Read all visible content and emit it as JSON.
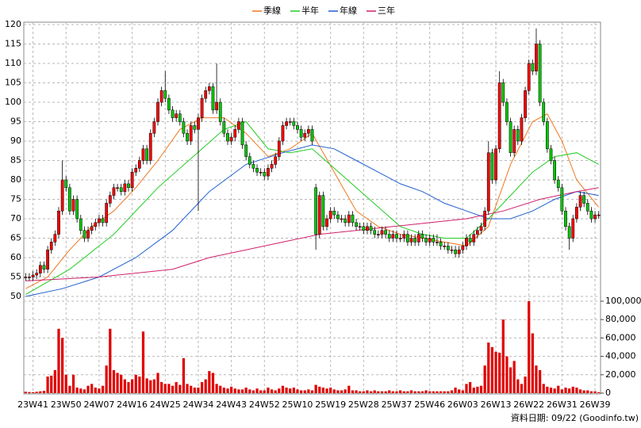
{
  "chart_data": {
    "type": "candlestick",
    "source": "資料日期: 09/22 (Goodinfo.tw)",
    "up_color": "#ff0000",
    "down_color": "#00c800",
    "volume_color": "#e00000",
    "grid": true,
    "legend": "top",
    "xlim": [
      -0.5,
      156.5
    ],
    "ylim": [
      50,
      120
    ],
    "y2lim": [
      0,
      100000
    ],
    "yticks": [
      50,
      55,
      60,
      65,
      70,
      75,
      80,
      85,
      90,
      95,
      100,
      105,
      110,
      115,
      120
    ],
    "y2ticks": [
      0,
      {
        "value": 20000,
        "label": "20,000"
      },
      {
        "value": 40000,
        "label": "40,000"
      },
      {
        "value": 60000,
        "label": "60,000"
      },
      {
        "value": 80000,
        "label": "80,000"
      },
      {
        "value": 100000,
        "label": "100,000"
      }
    ],
    "xticks": [
      {
        "value": 2,
        "label": "23W41"
      },
      {
        "value": 11,
        "label": "23W50"
      },
      {
        "value": 20,
        "label": "24W07"
      },
      {
        "value": 29,
        "label": "24W16"
      },
      {
        "value": 38,
        "label": "24W25"
      },
      {
        "value": 47,
        "label": "24W34"
      },
      {
        "value": 56,
        "label": "24W43"
      },
      {
        "value": 65,
        "label": "24W52"
      },
      {
        "value": 74,
        "label": "25W10"
      },
      {
        "value": 83,
        "label": "25W19"
      },
      {
        "value": 92,
        "label": "25W28"
      },
      {
        "value": 101,
        "label": "25W37"
      },
      {
        "value": 110,
        "label": "25W46"
      },
      {
        "value": 119,
        "label": "26W03"
      },
      {
        "value": 128,
        "label": "26W13"
      },
      {
        "value": 137,
        "label": "26W22"
      },
      {
        "value": 146,
        "label": "26W31"
      },
      {
        "value": 155,
        "label": "26W39"
      }
    ],
    "x": [
      0,
      1,
      2,
      3,
      4,
      5,
      6,
      7,
      8,
      9,
      10,
      11,
      12,
      13,
      14,
      15,
      16,
      17,
      18,
      19,
      20,
      21,
      22,
      23,
      24,
      25,
      26,
      27,
      28,
      29,
      30,
      31,
      32,
      33,
      34,
      35,
      36,
      37,
      38,
      39,
      40,
      41,
      42,
      43,
      44,
      45,
      46,
      47,
      48,
      49,
      50,
      51,
      52,
      53,
      54,
      55,
      56,
      57,
      58,
      59,
      60,
      61,
      62,
      63,
      64,
      65,
      66,
      67,
      68,
      69,
      70,
      71,
      72,
      73,
      74,
      75,
      76,
      77,
      78,
      79,
      80,
      81,
      82,
      83,
      84,
      85,
      86,
      87,
      88,
      89,
      90,
      91,
      92,
      93,
      94,
      95,
      96,
      97,
      98,
      99,
      100,
      101,
      102,
      103,
      104,
      105,
      106,
      107,
      108,
      109,
      110,
      111,
      112,
      113,
      114,
      115,
      116,
      117,
      118,
      119,
      120,
      121,
      122,
      123,
      124,
      125,
      126,
      127,
      128,
      129,
      130,
      131,
      132,
      133,
      134,
      135,
      136,
      137,
      138,
      139,
      140,
      141,
      142,
      143,
      144,
      145,
      146,
      147,
      148,
      149,
      150,
      151,
      152,
      153,
      154,
      155,
      156
    ],
    "open": [
      55,
      55,
      55,
      55.5,
      56,
      58,
      57,
      62,
      64,
      66,
      72,
      80,
      78,
      72,
      75,
      70,
      67,
      65,
      67,
      68,
      69,
      70,
      69,
      74,
      76,
      78,
      78,
      77,
      79,
      78,
      82,
      83,
      85,
      88,
      85,
      92,
      95,
      100,
      103,
      101,
      98,
      96,
      97,
      95,
      92,
      90,
      94,
      93,
      96,
      101,
      103,
      104,
      98,
      100,
      95,
      92,
      90,
      91,
      93,
      95,
      89,
      86,
      84,
      83,
      82,
      82,
      81,
      83,
      84,
      86,
      90,
      94,
      95,
      95,
      94,
      93,
      91,
      92,
      93,
      78,
      66,
      76,
      68,
      70,
      72,
      71,
      70,
      70,
      69,
      71,
      69,
      68,
      68,
      67,
      68,
      67,
      66,
      66,
      67,
      66,
      65,
      66,
      65,
      65,
      66,
      64,
      65,
      64,
      66,
      65,
      64,
      65,
      64,
      64,
      63,
      63,
      62,
      62,
      61,
      62,
      63,
      65,
      64,
      66,
      67,
      68,
      72,
      87,
      80,
      88,
      105,
      100,
      95,
      87,
      93,
      90,
      96,
      103,
      110,
      108,
      115,
      100,
      95,
      88,
      85,
      80,
      78,
      72,
      68,
      65,
      70,
      73,
      76,
      74,
      72,
      70,
      71
    ],
    "high": [
      56,
      56,
      56.5,
      57,
      59,
      59,
      63,
      65,
      67,
      73,
      85,
      81,
      79,
      76,
      76,
      71,
      68,
      68,
      69,
      70,
      71,
      71,
      75,
      77,
      79,
      79,
      79,
      80,
      80,
      83,
      84,
      86,
      89,
      89,
      93,
      96,
      101,
      104,
      108,
      102,
      99,
      98,
      98,
      96,
      93,
      95,
      95,
      97,
      102,
      104,
      105,
      105,
      110,
      101,
      96,
      93,
      92,
      94,
      96,
      96,
      90,
      87,
      85,
      84,
      83,
      83,
      84,
      85,
      87,
      91,
      95,
      96,
      96,
      96,
      95,
      94,
      93,
      94,
      94,
      79,
      77,
      77,
      71,
      73,
      73,
      72,
      71,
      71,
      72,
      72,
      70,
      69,
      69,
      69,
      69,
      68,
      67,
      68,
      68,
      67,
      67,
      67,
      66,
      67,
      67,
      66,
      66,
      67,
      67,
      66,
      66,
      66,
      66,
      65,
      64,
      64,
      63,
      63,
      63,
      64,
      66,
      66,
      67,
      68,
      69,
      73,
      90,
      88,
      89,
      108,
      106,
      101,
      96,
      94,
      94,
      97,
      104,
      111,
      111,
      119,
      116,
      101,
      96,
      89,
      86,
      81,
      79,
      73,
      69,
      71,
      74,
      77,
      77,
      75,
      73,
      72,
      72
    ],
    "low": [
      54,
      54,
      54,
      54.5,
      55,
      56,
      56,
      61,
      63,
      65,
      71,
      77,
      71,
      71,
      69,
      66,
      64,
      64,
      66,
      67,
      68,
      68,
      68,
      73,
      75,
      77,
      76,
      76,
      77,
      77,
      81,
      82,
      84,
      84,
      84,
      91,
      94,
      99,
      100,
      97,
      95,
      95,
      94,
      91,
      89,
      89,
      92,
      72,
      95,
      100,
      102,
      97,
      97,
      94,
      91,
      89,
      89,
      90,
      92,
      88,
      85,
      83,
      82,
      81,
      81,
      80,
      80,
      82,
      83,
      85,
      89,
      93,
      94,
      93,
      92,
      90,
      90,
      91,
      89,
      62,
      65,
      67,
      67,
      69,
      70,
      69,
      69,
      68,
      68,
      68,
      67,
      67,
      66,
      66,
      66,
      65,
      65,
      65,
      65,
      64,
      64,
      64,
      64,
      64,
      63,
      63,
      63,
      63,
      64,
      63,
      63,
      63,
      63,
      62,
      62,
      61,
      61,
      60,
      60,
      61,
      62,
      63,
      63,
      65,
      66,
      67,
      71,
      79,
      79,
      87,
      99,
      94,
      86,
      86,
      89,
      89,
      95,
      102,
      107,
      107,
      99,
      94,
      87,
      84,
      79,
      77,
      71,
      67,
      62,
      64,
      69,
      72,
      73,
      71,
      69,
      69,
      70
    ],
    "close": [
      55,
      55,
      55.5,
      56,
      58,
      57,
      62,
      64,
      66,
      72,
      80,
      78,
      72,
      75,
      70,
      67,
      65,
      67,
      68,
      69,
      70,
      69,
      74,
      76,
      78,
      78,
      77,
      79,
      78,
      82,
      83,
      85,
      88,
      85,
      92,
      95,
      100,
      103,
      101,
      98,
      96,
      97,
      95,
      92,
      90,
      94,
      93,
      96,
      101,
      103,
      104,
      98,
      100,
      95,
      92,
      90,
      91,
      93,
      95,
      89,
      86,
      84,
      83,
      82,
      82,
      81,
      83,
      84,
      86,
      90,
      94,
      95,
      95,
      94,
      93,
      91,
      92,
      93,
      90,
      66,
      76,
      68,
      70,
      72,
      71,
      70,
      70,
      69,
      71,
      69,
      68,
      68,
      67,
      68,
      67,
      66,
      66,
      67,
      66,
      65,
      66,
      65,
      65,
      66,
      64,
      65,
      64,
      66,
      65,
      64,
      65,
      64,
      64,
      63,
      63,
      62,
      62,
      61,
      62,
      63,
      65,
      64,
      66,
      67,
      68,
      72,
      87,
      80,
      88,
      105,
      100,
      95,
      87,
      93,
      90,
      96,
      103,
      110,
      108,
      115,
      100,
      95,
      88,
      85,
      80,
      78,
      72,
      68,
      65,
      70,
      73,
      76,
      74,
      72,
      70,
      71,
      71
    ],
    "volume": [
      1500,
      1200,
      1000,
      1500,
      2000,
      2500,
      18000,
      19000,
      25000,
      70000,
      60000,
      20000,
      8000,
      20000,
      6000,
      5000,
      4000,
      8000,
      10000,
      6000,
      5000,
      8000,
      30000,
      70000,
      25000,
      22000,
      20000,
      15000,
      12000,
      15000,
      20000,
      18000,
      67000,
      16000,
      14000,
      15000,
      22000,
      12000,
      10000,
      10000,
      8000,
      12000,
      9000,
      38000,
      10000,
      8000,
      6000,
      6000,
      12000,
      15000,
      24000,
      22000,
      10000,
      8000,
      6000,
      5000,
      7000,
      5000,
      4000,
      4000,
      6000,
      4000,
      3000,
      5000,
      3000,
      3000,
      6000,
      4000,
      3000,
      5000,
      8000,
      6000,
      5000,
      6000,
      4000,
      3000,
      3000,
      4000,
      3000,
      9000,
      7000,
      6000,
      5000,
      6000,
      4000,
      3000,
      3000,
      4000,
      8000,
      3000,
      3000,
      2000,
      2000,
      3000,
      2000,
      3000,
      2000,
      2000,
      2000,
      3000,
      2000,
      2000,
      3000,
      2000,
      2000,
      3000,
      2000,
      2000,
      2000,
      3000,
      2000,
      2000,
      2000,
      2000,
      2000,
      2000,
      3000,
      6000,
      4000,
      3000,
      10000,
      12000,
      6000,
      7000,
      8000,
      30000,
      55000,
      50000,
      45000,
      44000,
      80000,
      40000,
      28000,
      35000,
      15000,
      10000,
      18000,
      100000,
      65000,
      30000,
      25000,
      10000,
      7000,
      6000,
      5000,
      8000,
      4000,
      6000,
      5000,
      7000,
      6000,
      4000,
      3000,
      3000,
      2000,
      2000,
      1000
    ],
    "series": [
      {
        "name": "季線",
        "color": "#f07820",
        "x": [
          0,
          6,
          12,
          18,
          24,
          30,
          36,
          42,
          48,
          54,
          60,
          66,
          72,
          78,
          84,
          90,
          96,
          102,
          108,
          114,
          120,
          126,
          132,
          138,
          142,
          146,
          150,
          156
        ],
        "values": [
          52,
          55,
          62,
          68,
          72,
          78,
          85,
          93,
          96,
          96,
          92,
          86,
          88,
          92,
          82,
          72,
          68,
          66,
          65,
          64,
          63,
          68,
          84,
          95,
          97,
          90,
          80,
          73
        ]
      },
      {
        "name": "半年",
        "color": "#22cc22",
        "x": [
          0,
          12,
          24,
          36,
          48,
          54,
          60,
          66,
          72,
          78,
          84,
          90,
          96,
          102,
          108,
          114,
          120,
          126,
          132,
          138,
          144,
          150,
          156
        ],
        "values": [
          50.5,
          57,
          66,
          78,
          88,
          93,
          95,
          88,
          87,
          88,
          83,
          78,
          73,
          68,
          66,
          65,
          65,
          70,
          76,
          82,
          86,
          87,
          84
        ]
      },
      {
        "name": "年線",
        "color": "#1f5fd0",
        "x": [
          0,
          10,
          20,
          30,
          40,
          50,
          60,
          70,
          78,
          84,
          90,
          96,
          102,
          108,
          114,
          120,
          126,
          132,
          138,
          144,
          150,
          156
        ],
        "values": [
          50,
          52,
          55,
          60,
          67,
          77,
          84,
          87,
          89,
          88,
          85,
          82,
          79,
          77,
          74,
          72,
          70,
          70,
          72,
          75,
          77,
          76
        ]
      },
      {
        "name": "三年",
        "color": "#d0206a",
        "x": [
          0,
          20,
          40,
          50,
          60,
          70,
          80,
          90,
          100,
          110,
          120,
          130,
          140,
          150,
          156
        ],
        "values": [
          54,
          55,
          57,
          60,
          62,
          64,
          66,
          67,
          68,
          69,
          70,
          72,
          75,
          77,
          78
        ]
      }
    ]
  }
}
